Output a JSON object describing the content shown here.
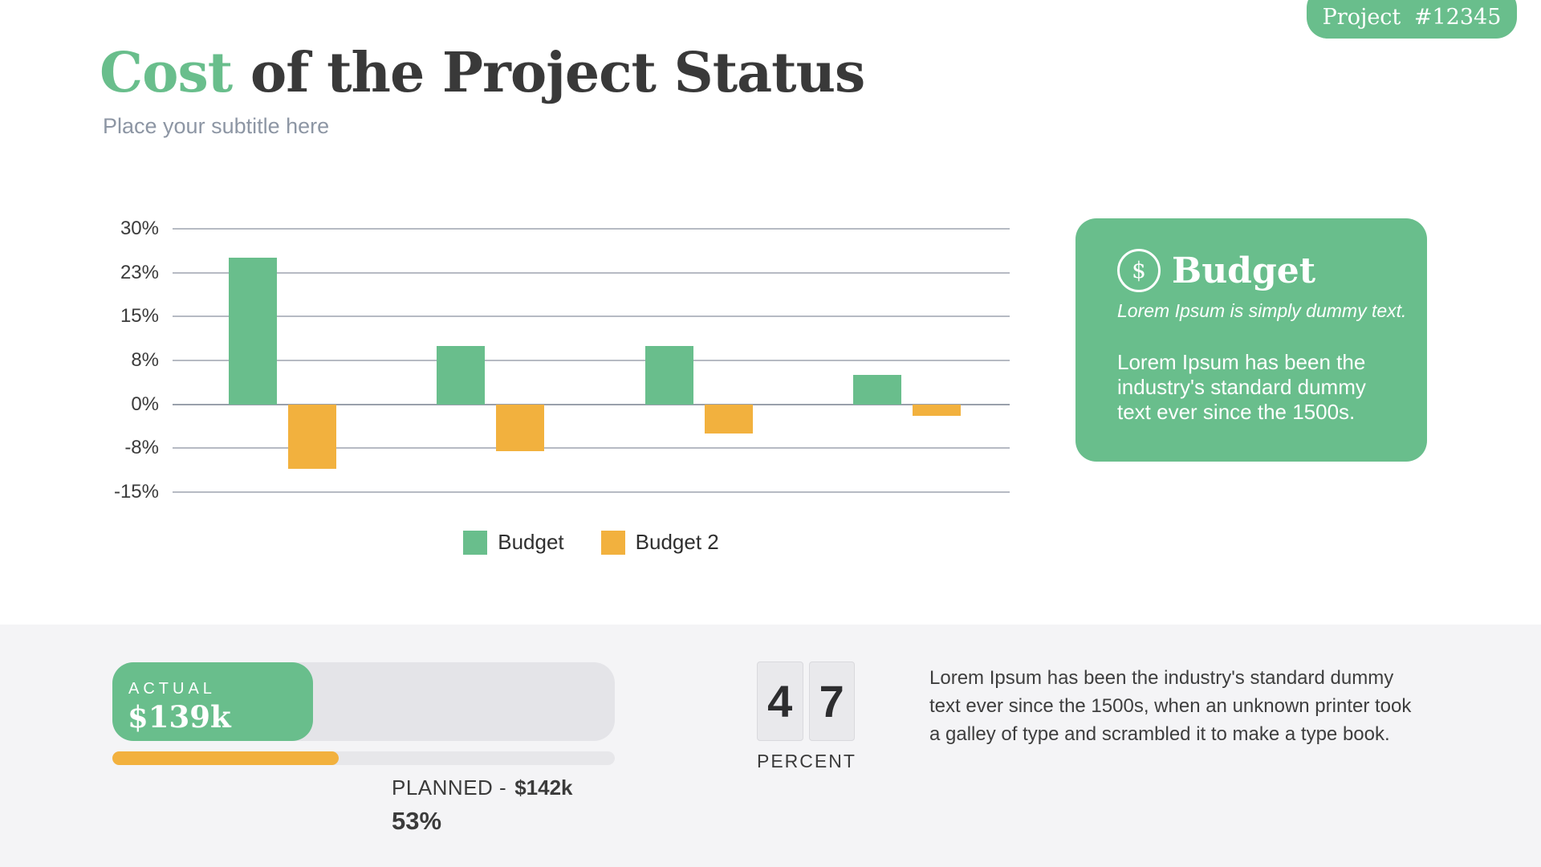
{
  "badge": {
    "label": "Project #12345"
  },
  "header": {
    "title_highlight": "Cost",
    "title_rest": " of the Project Status",
    "subtitle": "Place your subtitle here"
  },
  "chart_data": {
    "type": "bar",
    "title": "",
    "xlabel": "",
    "ylabel": "",
    "ylim": [
      -15,
      30
    ],
    "grid": true,
    "legend_position": "bottom",
    "yticks": [
      {
        "label": "30%",
        "value": 30
      },
      {
        "label": "23%",
        "value": 22.5
      },
      {
        "label": "15%",
        "value": 15
      },
      {
        "label": "8%",
        "value": 7.5
      },
      {
        "label": "0%",
        "value": 0
      },
      {
        "label": "-8%",
        "value": -7.5
      },
      {
        "label": "-15%",
        "value": -15
      }
    ],
    "series": [
      {
        "name": "Budget",
        "color": "#69be8c",
        "values": [
          25,
          10,
          10,
          5
        ]
      },
      {
        "name": "Budget 2",
        "color": "#f2b13e",
        "values": [
          -11,
          -8,
          -5,
          -2
        ]
      }
    ]
  },
  "budget_card": {
    "icon": "$",
    "title": "Budget",
    "subtitle_italic": "Lorem Ipsum is simply dummy text.",
    "body_lines": [
      "Lorem Ipsum has been the",
      "industry's standard dummy",
      "text ever since the 1500s."
    ]
  },
  "footer": {
    "actual": {
      "label": "ACTUAL",
      "value": "$139k",
      "fill_pct": 40
    },
    "planned": {
      "label": "PLANNED -",
      "value": "$142k",
      "percent": "53%",
      "fill_pct": 45
    },
    "counter": {
      "digits": [
        "4",
        "7"
      ],
      "label": "PERCENT"
    },
    "paragraph_lines": [
      "Lorem Ipsum has been the industry's standard dummy",
      "text ever since the 1500s, when an unknown printer took",
      "a galley of type and scrambled it to make a type book."
    ]
  },
  "colors": {
    "green": "#69be8c",
    "orange": "#f2b13e",
    "footer_bg": "#f4f4f6",
    "track_gray": "#e4e4e8",
    "grid_line": "#b6bac3",
    "zero_line": "#99a0ab",
    "title_dark": "#393939",
    "subtitle_gray": "#8d96a4"
  }
}
